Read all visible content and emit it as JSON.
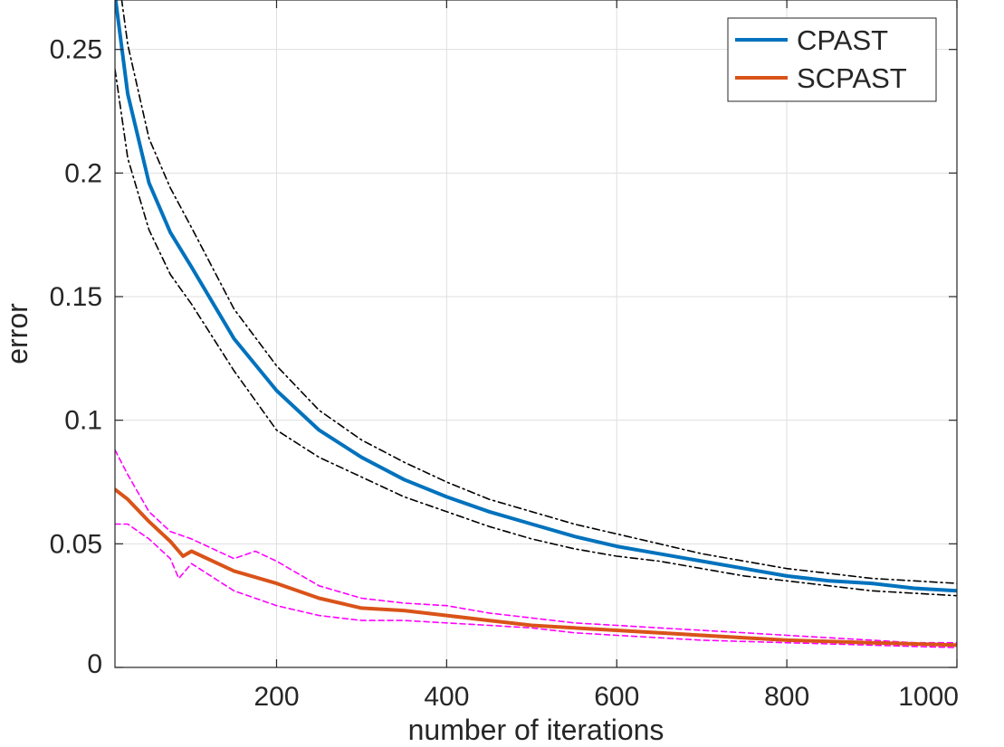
{
  "chart_data": {
    "type": "line",
    "title": "",
    "xlabel": "number of iterations",
    "ylabel": "error",
    "xlim": [
      10,
      1000
    ],
    "ylim": [
      0,
      0.27
    ],
    "xticks": [
      200,
      400,
      600,
      800,
      1000
    ],
    "xtick_labels": [
      "200",
      "400",
      "600",
      "800",
      "1000"
    ],
    "yticks": [
      0,
      0.05,
      0.1,
      0.15,
      0.2,
      0.25
    ],
    "ytick_labels": [
      "0",
      "0.05",
      "0.1",
      "0.15",
      "0.2",
      "0.25"
    ],
    "grid": true,
    "legend_position": "top-right",
    "series": [
      {
        "name": "CPAST",
        "color": "#0072BD",
        "style": "solid",
        "in_legend": true,
        "x": [
          10,
          25,
          50,
          75,
          100,
          150,
          200,
          250,
          300,
          350,
          400,
          450,
          500,
          550,
          600,
          650,
          700,
          750,
          800,
          850,
          900,
          950,
          1000
        ],
        "y": [
          0.272,
          0.232,
          0.196,
          0.176,
          0.162,
          0.133,
          0.112,
          0.096,
          0.085,
          0.076,
          0.069,
          0.063,
          0.058,
          0.053,
          0.049,
          0.046,
          0.043,
          0.04,
          0.037,
          0.035,
          0.034,
          0.032,
          0.031
        ]
      },
      {
        "name": "CPAST upper bound",
        "color": "#000000",
        "style": "dashdot",
        "in_legend": false,
        "x": [
          10,
          25,
          50,
          75,
          100,
          150,
          200,
          250,
          300,
          350,
          400,
          450,
          500,
          550,
          600,
          650,
          700,
          750,
          800,
          850,
          900,
          950,
          1000
        ],
        "y": [
          0.29,
          0.252,
          0.214,
          0.194,
          0.178,
          0.145,
          0.122,
          0.104,
          0.092,
          0.083,
          0.075,
          0.068,
          0.063,
          0.058,
          0.054,
          0.05,
          0.046,
          0.043,
          0.04,
          0.038,
          0.036,
          0.035,
          0.034
        ]
      },
      {
        "name": "CPAST lower bound",
        "color": "#000000",
        "style": "dashdot",
        "in_legend": false,
        "x": [
          10,
          25,
          50,
          75,
          100,
          150,
          200,
          250,
          300,
          350,
          400,
          450,
          500,
          550,
          600,
          650,
          700,
          750,
          800,
          850,
          900,
          950,
          1000
        ],
        "y": [
          0.242,
          0.206,
          0.177,
          0.159,
          0.147,
          0.12,
          0.096,
          0.085,
          0.077,
          0.069,
          0.063,
          0.057,
          0.052,
          0.048,
          0.045,
          0.043,
          0.04,
          0.037,
          0.035,
          0.033,
          0.031,
          0.03,
          0.029
        ]
      },
      {
        "name": "SCPAST",
        "color": "#D95319",
        "style": "solid",
        "in_legend": true,
        "x": [
          10,
          25,
          50,
          75,
          90,
          100,
          150,
          200,
          250,
          300,
          350,
          400,
          450,
          500,
          550,
          600,
          650,
          700,
          750,
          800,
          850,
          900,
          950,
          1000
        ],
        "y": [
          0.072,
          0.068,
          0.059,
          0.051,
          0.045,
          0.047,
          0.039,
          0.034,
          0.028,
          0.024,
          0.023,
          0.021,
          0.019,
          0.017,
          0.016,
          0.015,
          0.014,
          0.013,
          0.012,
          0.011,
          0.0105,
          0.01,
          0.0095,
          0.009
        ]
      },
      {
        "name": "SCPAST upper bound",
        "color": "#FF00FF",
        "style": "dashed",
        "in_legend": false,
        "x": [
          10,
          25,
          50,
          75,
          100,
          150,
          175,
          200,
          250,
          300,
          350,
          400,
          450,
          500,
          550,
          600,
          650,
          700,
          750,
          800,
          850,
          900,
          950,
          1000
        ],
        "y": [
          0.088,
          0.078,
          0.063,
          0.055,
          0.052,
          0.044,
          0.047,
          0.043,
          0.033,
          0.028,
          0.026,
          0.025,
          0.022,
          0.02,
          0.018,
          0.017,
          0.016,
          0.015,
          0.014,
          0.013,
          0.012,
          0.011,
          0.01,
          0.01
        ]
      },
      {
        "name": "SCPAST lower bound",
        "color": "#FF00FF",
        "style": "dashed",
        "in_legend": false,
        "x": [
          10,
          25,
          50,
          75,
          85,
          100,
          150,
          200,
          250,
          300,
          350,
          400,
          450,
          500,
          550,
          600,
          650,
          700,
          750,
          800,
          850,
          900,
          950,
          1000
        ],
        "y": [
          0.058,
          0.058,
          0.052,
          0.044,
          0.036,
          0.042,
          0.031,
          0.025,
          0.021,
          0.019,
          0.019,
          0.018,
          0.017,
          0.016,
          0.014,
          0.013,
          0.012,
          0.011,
          0.0105,
          0.01,
          0.0095,
          0.009,
          0.0085,
          0.008
        ]
      }
    ]
  }
}
